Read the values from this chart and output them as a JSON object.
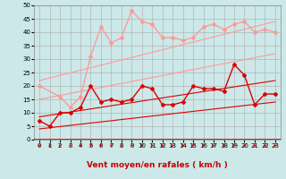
{
  "background_color": "#cce8e8",
  "grid_color": "#aaaaaa",
  "xlim": [
    -0.5,
    23.5
  ],
  "ylim": [
    0,
    50
  ],
  "yticks": [
    0,
    5,
    10,
    15,
    20,
    25,
    30,
    35,
    40,
    45,
    50
  ],
  "xticks": [
    0,
    1,
    2,
    3,
    4,
    5,
    6,
    7,
    8,
    9,
    10,
    11,
    12,
    13,
    14,
    15,
    16,
    17,
    18,
    19,
    20,
    21,
    22,
    23
  ],
  "xlabel": "Vent moyen/en rafales ( km/h )",
  "lines": [
    {
      "x": [
        0,
        1,
        2,
        3,
        4,
        5,
        6,
        7,
        8,
        9,
        10,
        11,
        12,
        13,
        14,
        15,
        16,
        17,
        18,
        19,
        20,
        21,
        22,
        23
      ],
      "y": [
        7,
        5,
        10,
        10,
        12,
        20,
        14,
        15,
        14,
        15,
        20,
        19,
        13,
        13,
        14,
        20,
        19,
        19,
        18,
        28,
        24,
        13,
        17,
        17
      ],
      "color": "#dd0000",
      "lw": 1.0,
      "marker": "D",
      "ms": 2.0
    },
    {
      "x": [
        0,
        23
      ],
      "y": [
        8.5,
        22
      ],
      "color": "#dd0000",
      "lw": 0.8,
      "marker": null,
      "ms": 0
    },
    {
      "x": [
        0,
        23
      ],
      "y": [
        4,
        14
      ],
      "color": "#dd0000",
      "lw": 0.8,
      "marker": null,
      "ms": 0
    },
    {
      "x": [
        0,
        2,
        3,
        4,
        5,
        6,
        7,
        8,
        9,
        10,
        11,
        12,
        13,
        14,
        15,
        16,
        17,
        18,
        19,
        20,
        21,
        22,
        23
      ],
      "y": [
        20,
        16,
        12,
        16,
        31,
        42,
        36,
        38,
        48,
        44,
        43,
        38,
        38,
        37,
        38,
        42,
        43,
        41,
        43,
        44,
        40,
        41,
        40
      ],
      "color": "#ff9999",
      "lw": 1.0,
      "marker": "D",
      "ms": 2.0
    },
    {
      "x": [
        0,
        23
      ],
      "y": [
        22,
        44
      ],
      "color": "#ff9999",
      "lw": 0.8,
      "marker": null,
      "ms": 0
    },
    {
      "x": [
        0,
        23
      ],
      "y": [
        15,
        32
      ],
      "color": "#ff9999",
      "lw": 0.8,
      "marker": null,
      "ms": 0
    }
  ],
  "arrows": {
    "color": "#cc0000",
    "positions": [
      0,
      1,
      2,
      3,
      4,
      5,
      6,
      7,
      8,
      9,
      10,
      11,
      12,
      13,
      14,
      15,
      16,
      17,
      18,
      19,
      20,
      21,
      22,
      23
    ]
  },
  "xlabel_color": "#cc0000",
  "xlabel_fontsize": 6.5,
  "tick_fontsize": 5,
  "axis_line_color": "#cc0000"
}
